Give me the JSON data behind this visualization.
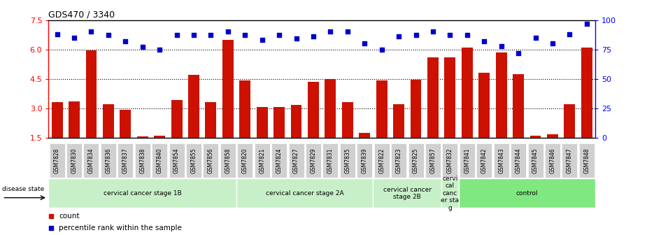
{
  "title": "GDS470 / 3340",
  "samples": [
    "GSM7828",
    "GSM7830",
    "GSM7834",
    "GSM7836",
    "GSM7837",
    "GSM7838",
    "GSM7840",
    "GSM7854",
    "GSM7855",
    "GSM7856",
    "GSM7858",
    "GSM7820",
    "GSM7821",
    "GSM7824",
    "GSM7827",
    "GSM7829",
    "GSM7831",
    "GSM7835",
    "GSM7839",
    "GSM7822",
    "GSM7823",
    "GSM7825",
    "GSM7857",
    "GSM7832",
    "GSM7841",
    "GSM7842",
    "GSM7843",
    "GSM7844",
    "GSM7845",
    "GSM7846",
    "GSM7847",
    "GSM7848"
  ],
  "counts": [
    3.3,
    3.35,
    5.95,
    3.2,
    2.9,
    1.55,
    1.6,
    3.4,
    4.7,
    3.3,
    6.5,
    4.4,
    3.05,
    3.05,
    3.15,
    4.35,
    4.5,
    3.3,
    1.75,
    4.4,
    3.2,
    4.45,
    5.6,
    5.6,
    6.1,
    4.8,
    5.85,
    4.75,
    1.6,
    1.65,
    3.2,
    6.1
  ],
  "percentiles": [
    88,
    85,
    90,
    87,
    82,
    77,
    75,
    87,
    87,
    87,
    90,
    87,
    83,
    87,
    84,
    86,
    90,
    90,
    80,
    75,
    86,
    87,
    90,
    87,
    87,
    82,
    78,
    72,
    85,
    80,
    88,
    97
  ],
  "groups": [
    {
      "label": "cervical cancer stage 1B",
      "start": 0,
      "end": 10,
      "color": "#c8f0c8"
    },
    {
      "label": "cervical cancer stage 2A",
      "start": 11,
      "end": 18,
      "color": "#c8f0c8"
    },
    {
      "label": "cervical cancer\nstage 2B",
      "start": 19,
      "end": 22,
      "color": "#c8f0c8"
    },
    {
      "label": "cervi\ncal\ncanc\ner sta\ng",
      "start": 23,
      "end": 23,
      "color": "#c8f0c8"
    },
    {
      "label": "control",
      "start": 24,
      "end": 31,
      "color": "#80e880"
    }
  ],
  "ylim_left": [
    1.5,
    7.5
  ],
  "ylim_right": [
    0,
    100
  ],
  "yticks_left": [
    1.5,
    3.0,
    4.5,
    6.0,
    7.5
  ],
  "yticks_right": [
    0,
    25,
    50,
    75,
    100
  ],
  "grid_lines": [
    3.0,
    4.5,
    6.0
  ],
  "bar_color": "#cc1100",
  "dot_color": "#0000cc",
  "bg_color": "#ffffff",
  "bar_width": 0.65
}
